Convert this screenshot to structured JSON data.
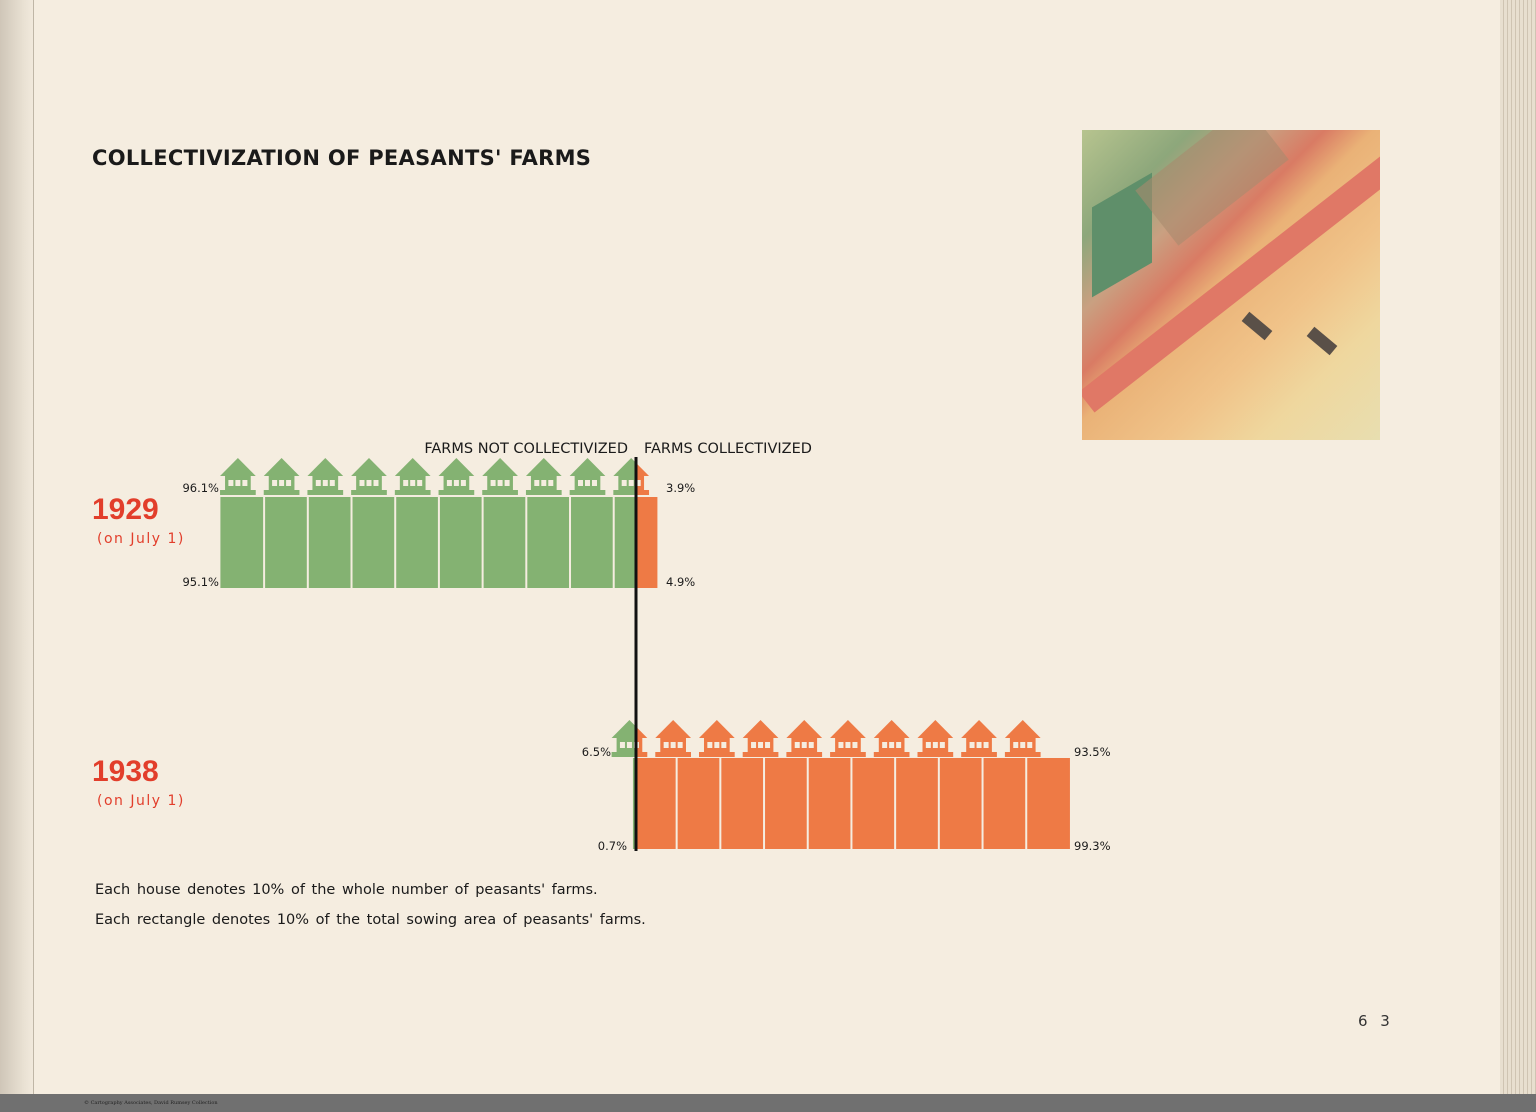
{
  "title": "COLLECTIVIZATION OF PEASANTS' FARMS",
  "legend": {
    "not_collectivized": "FARMS NOT COLLECTIVIZED",
    "collectivized": "FARMS COLLECTIVIZED"
  },
  "colors": {
    "not_collectivized": "#84b272",
    "collectivized": "#ee7a45",
    "year": "#e23e2b"
  },
  "chart_data": {
    "type": "bar",
    "orientation": "horizontal diverging pictogram",
    "categories": [
      "1929",
      "1938"
    ],
    "category_sublabels": [
      "(on July 1)",
      "(on July 1)"
    ],
    "series": [
      {
        "name": "FARMS NOT COLLECTIVIZED",
        "measure": "farms (houses)",
        "values": [
          96.1,
          6.5
        ],
        "labels": [
          "96.1%",
          "6.5%"
        ]
      },
      {
        "name": "FARMS COLLECTIVIZED",
        "measure": "farms (houses)",
        "values": [
          3.9,
          93.5
        ],
        "labels": [
          "3.9%",
          "93.5%"
        ]
      },
      {
        "name": "FARMS NOT COLLECTIVIZED",
        "measure": "sowing area (rectangles)",
        "values": [
          95.1,
          0.7
        ],
        "labels": [
          "95.1%",
          "0.7%"
        ]
      },
      {
        "name": "FARMS COLLECTIVIZED",
        "measure": "sowing area (rectangles)",
        "values": [
          4.9,
          99.3
        ],
        "labels": [
          "4.9%",
          "99.3%"
        ]
      }
    ],
    "unit": "%",
    "icon_unit": 10
  },
  "rows": [
    {
      "year": "1929",
      "sub": "(on July 1)"
    },
    {
      "year": "1938",
      "sub": "(on July 1)"
    }
  ],
  "notes": [
    "Each house denotes 10% of the whole number of peasants' farms.",
    "Each rectangle denotes 10% of the total sowing area of peasants' farms."
  ],
  "page_number": "6 3",
  "credit": "© Cartography Associates, David Rumsey Collection"
}
